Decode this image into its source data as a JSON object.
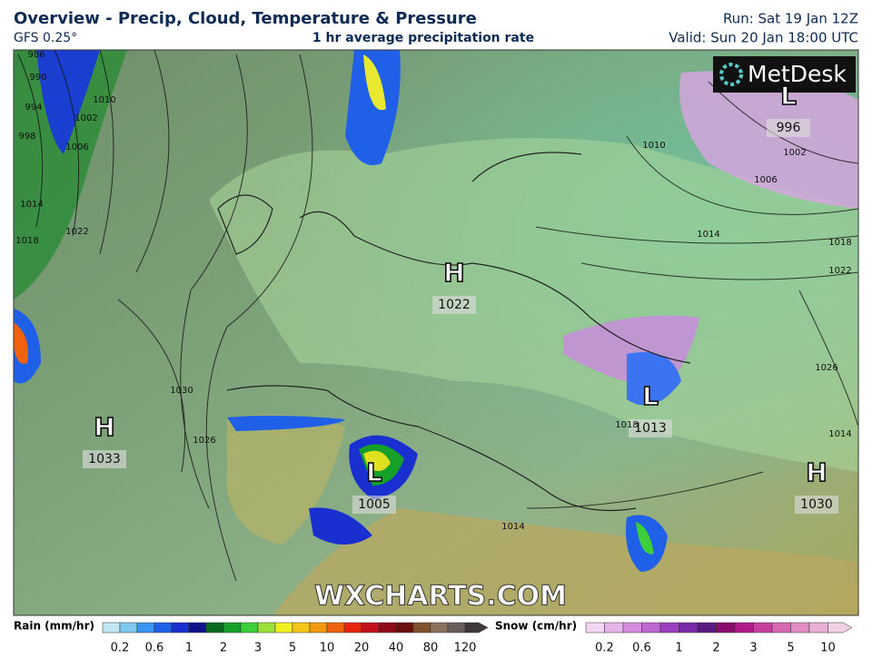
{
  "header": {
    "title": "Overview - Precip, Cloud, Temperature & Pressure",
    "model": "GFS 0.25°",
    "subtitle": "1 hr average precipitation rate",
    "run": "Run: Sat 19 Jan 12Z",
    "valid": "Valid: Sun 20 Jan 18:00 UTC"
  },
  "map": {
    "logo": "MetDesk",
    "watermark": "WXCHARTS.COM",
    "pressure_centres": [
      {
        "type": "H",
        "value": 1022
      },
      {
        "type": "H",
        "value": 1033
      },
      {
        "type": "L",
        "value": 1005
      },
      {
        "type": "L",
        "value": 1013
      },
      {
        "type": "H",
        "value": 1030
      },
      {
        "type": "L",
        "value": 996
      }
    ],
    "isobar_labels": [
      986,
      990,
      994,
      998,
      1002,
      1006,
      1010,
      1014,
      1018,
      1022,
      1026,
      1030,
      1014,
      1018,
      1022,
      1026,
      1002,
      1006,
      1010,
      1014,
      1018,
      1014
    ]
  },
  "legend": {
    "rain": {
      "label": "Rain (mm/hr)",
      "ticks": [
        0.2,
        0.6,
        1,
        2,
        3,
        5,
        10,
        20,
        40,
        80,
        120
      ],
      "colors": [
        "#bfe6f2",
        "#7fc8f0",
        "#3b95f0",
        "#2060e8",
        "#1a2fd0",
        "#10128a",
        "#0a6a1e",
        "#16a02a",
        "#3ccf3a",
        "#9ee03a",
        "#f0f020",
        "#f5c518",
        "#f59a10",
        "#f0620e",
        "#e8240e",
        "#c4101a",
        "#90081a",
        "#6a1010",
        "#80502c",
        "#8c7060",
        "#6a5e5a",
        "#3e3838"
      ]
    },
    "snow": {
      "label": "Snow (cm/hr)",
      "ticks": [
        0.2,
        0.6,
        1,
        2,
        3,
        5,
        10
      ],
      "colors": [
        "#f3d6f3",
        "#e6b4ea",
        "#d58de0",
        "#be66d2",
        "#9b3ec0",
        "#7a2aa8",
        "#5a1a80",
        "#8a0a70",
        "#b01a8a",
        "#c8409e",
        "#d868b0",
        "#e08ec2",
        "#e8b0d4",
        "#f2d0e6"
      ]
    }
  }
}
